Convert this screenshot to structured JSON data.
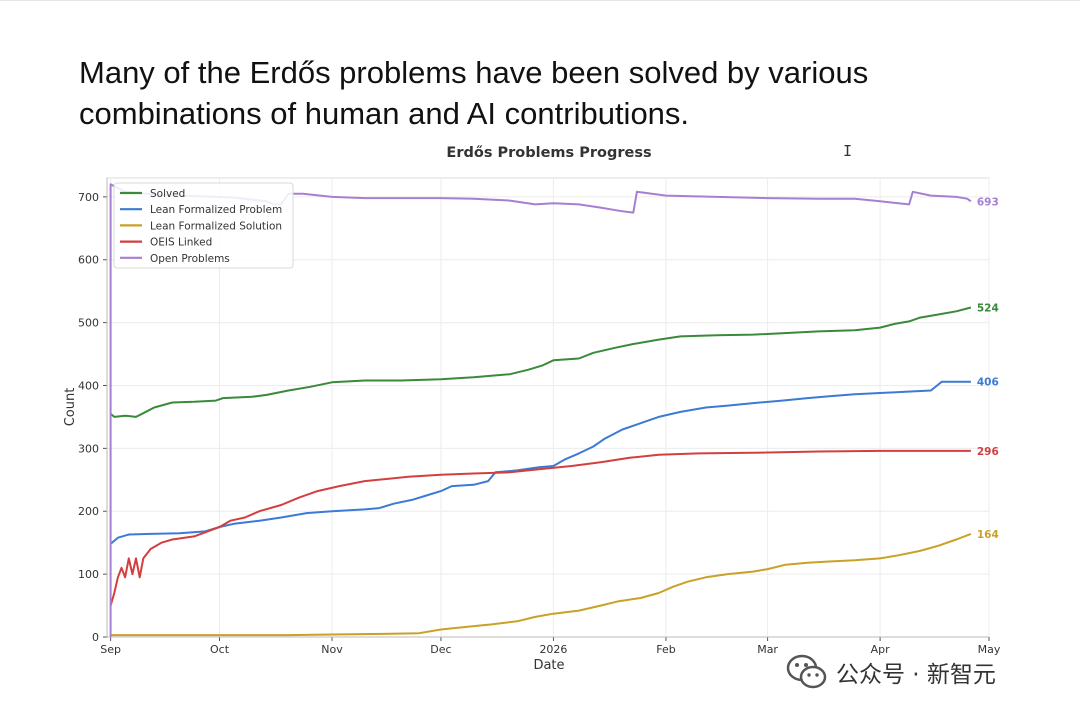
{
  "headline": {
    "line1": "Many of the Erdős problems have been solved by various",
    "line2": "combinations of human and AI contributions."
  },
  "watermark": {
    "text": "公众号 · 新智元",
    "icon": "wechat-icon"
  },
  "cursor": {
    "glyph": "I",
    "icon": "text-cursor-icon"
  },
  "chart_data": {
    "type": "line",
    "title": "Erdős Problems Progress",
    "xlabel": "Date",
    "ylabel": "Count",
    "xlim": [
      "2025-08-31",
      "2026-05-01"
    ],
    "ylim": [
      0,
      730
    ],
    "x_ticks": [
      {
        "date": "2025-09-01",
        "label": "Sep"
      },
      {
        "date": "2025-10-01",
        "label": "Oct"
      },
      {
        "date": "2025-11-01",
        "label": "Nov"
      },
      {
        "date": "2025-12-01",
        "label": "Dec"
      },
      {
        "date": "2026-01-01",
        "label": "2026"
      },
      {
        "date": "2026-02-01",
        "label": "Feb"
      },
      {
        "date": "2026-03-01",
        "label": "Mar"
      },
      {
        "date": "2026-04-01",
        "label": "Apr"
      },
      {
        "date": "2026-05-01",
        "label": "May"
      }
    ],
    "y_ticks": [
      0,
      100,
      200,
      300,
      400,
      500,
      600,
      700
    ],
    "grid": true,
    "legend_position": "top-left",
    "series": [
      {
        "name": "Solved",
        "color": "#3a8a3a",
        "end_label": "524",
        "points": [
          [
            "2025-09-01",
            355
          ],
          [
            "2025-09-02",
            350
          ],
          [
            "2025-09-05",
            352
          ],
          [
            "2025-09-08",
            350
          ],
          [
            "2025-09-10",
            356
          ],
          [
            "2025-09-13",
            365
          ],
          [
            "2025-09-18",
            373
          ],
          [
            "2025-09-24",
            374
          ],
          [
            "2025-09-30",
            376
          ],
          [
            "2025-10-02",
            380
          ],
          [
            "2025-10-10",
            382
          ],
          [
            "2025-10-14",
            385
          ],
          [
            "2025-10-20",
            392
          ],
          [
            "2025-10-26",
            398
          ],
          [
            "2025-11-01",
            405
          ],
          [
            "2025-11-10",
            408
          ],
          [
            "2025-11-20",
            408
          ],
          [
            "2025-12-01",
            410
          ],
          [
            "2025-12-10",
            413
          ],
          [
            "2025-12-20",
            418
          ],
          [
            "2025-12-25",
            425
          ],
          [
            "2025-12-29",
            432
          ],
          [
            "2026-01-01",
            440
          ],
          [
            "2026-01-08",
            443
          ],
          [
            "2026-01-12",
            452
          ],
          [
            "2026-01-18",
            460
          ],
          [
            "2026-01-23",
            466
          ],
          [
            "2026-01-30",
            473
          ],
          [
            "2026-02-05",
            478
          ],
          [
            "2026-02-15",
            480
          ],
          [
            "2026-02-25",
            481
          ],
          [
            "2026-03-05",
            483
          ],
          [
            "2026-03-15",
            486
          ],
          [
            "2026-03-25",
            488
          ],
          [
            "2026-04-01",
            492
          ],
          [
            "2026-04-05",
            498
          ],
          [
            "2026-04-09",
            502
          ],
          [
            "2026-04-12",
            508
          ],
          [
            "2026-04-16",
            512
          ],
          [
            "2026-04-22",
            518
          ],
          [
            "2026-04-26",
            524
          ]
        ]
      },
      {
        "name": "Lean Formalized Problem",
        "color": "#3c7ad6",
        "end_label": "406",
        "points": [
          [
            "2025-09-01",
            148
          ],
          [
            "2025-09-03",
            158
          ],
          [
            "2025-09-06",
            163
          ],
          [
            "2025-09-12",
            164
          ],
          [
            "2025-09-20",
            165
          ],
          [
            "2025-09-27",
            168
          ],
          [
            "2025-10-01",
            175
          ],
          [
            "2025-10-05",
            180
          ],
          [
            "2025-10-12",
            185
          ],
          [
            "2025-10-18",
            190
          ],
          [
            "2025-10-25",
            197
          ],
          [
            "2025-11-01",
            200
          ],
          [
            "2025-11-10",
            203
          ],
          [
            "2025-11-14",
            205
          ],
          [
            "2025-11-18",
            212
          ],
          [
            "2025-11-23",
            218
          ],
          [
            "2025-11-27",
            225
          ],
          [
            "2025-12-01",
            232
          ],
          [
            "2025-12-04",
            240
          ],
          [
            "2025-12-10",
            242
          ],
          [
            "2025-12-14",
            248
          ],
          [
            "2025-12-16",
            262
          ],
          [
            "2025-12-22",
            265
          ],
          [
            "2025-12-28",
            270
          ],
          [
            "2026-01-01",
            272
          ],
          [
            "2026-01-04",
            282
          ],
          [
            "2026-01-08",
            292
          ],
          [
            "2026-01-12",
            303
          ],
          [
            "2026-01-15",
            315
          ],
          [
            "2026-01-20",
            330
          ],
          [
            "2026-01-25",
            340
          ],
          [
            "2026-01-30",
            350
          ],
          [
            "2026-02-05",
            358
          ],
          [
            "2026-02-12",
            365
          ],
          [
            "2026-02-18",
            368
          ],
          [
            "2026-02-25",
            372
          ],
          [
            "2026-03-05",
            376
          ],
          [
            "2026-03-12",
            380
          ],
          [
            "2026-03-18",
            383
          ],
          [
            "2026-03-25",
            386
          ],
          [
            "2026-04-01",
            388
          ],
          [
            "2026-04-08",
            390
          ],
          [
            "2026-04-15",
            392
          ],
          [
            "2026-04-18",
            406
          ],
          [
            "2026-04-26",
            406
          ]
        ]
      },
      {
        "name": "Lean Formalized Solution",
        "color": "#c9a127",
        "end_label": "164",
        "points": [
          [
            "2025-09-01",
            3
          ],
          [
            "2025-09-15",
            3
          ],
          [
            "2025-10-01",
            3
          ],
          [
            "2025-10-20",
            3
          ],
          [
            "2025-11-01",
            4
          ],
          [
            "2025-11-15",
            5
          ],
          [
            "2025-11-25",
            6
          ],
          [
            "2025-12-01",
            12
          ],
          [
            "2025-12-08",
            16
          ],
          [
            "2025-12-15",
            20
          ],
          [
            "2025-12-22",
            25
          ],
          [
            "2025-12-27",
            32
          ],
          [
            "2026-01-01",
            37
          ],
          [
            "2026-01-08",
            42
          ],
          [
            "2026-01-14",
            50
          ],
          [
            "2026-01-19",
            57
          ],
          [
            "2026-01-25",
            62
          ],
          [
            "2026-01-30",
            70
          ],
          [
            "2026-02-03",
            80
          ],
          [
            "2026-02-07",
            88
          ],
          [
            "2026-02-12",
            95
          ],
          [
            "2026-02-18",
            100
          ],
          [
            "2026-02-25",
            104
          ],
          [
            "2026-03-01",
            108
          ],
          [
            "2026-03-06",
            115
          ],
          [
            "2026-03-12",
            118
          ],
          [
            "2026-03-18",
            120
          ],
          [
            "2026-03-25",
            122
          ],
          [
            "2026-04-01",
            125
          ],
          [
            "2026-04-06",
            130
          ],
          [
            "2026-04-12",
            137
          ],
          [
            "2026-04-17",
            145
          ],
          [
            "2026-04-22",
            155
          ],
          [
            "2026-04-26",
            164
          ]
        ]
      },
      {
        "name": "OEIS Linked",
        "color": "#d33f3f",
        "end_label": "296",
        "points": [
          [
            "2025-09-01",
            50
          ],
          [
            "2025-09-02",
            70
          ],
          [
            "2025-09-03",
            95
          ],
          [
            "2025-09-04",
            110
          ],
          [
            "2025-09-05",
            95
          ],
          [
            "2025-09-06",
            125
          ],
          [
            "2025-09-07",
            100
          ],
          [
            "2025-09-08",
            125
          ],
          [
            "2025-09-09",
            95
          ],
          [
            "2025-09-10",
            125
          ],
          [
            "2025-09-12",
            140
          ],
          [
            "2025-09-15",
            150
          ],
          [
            "2025-09-18",
            155
          ],
          [
            "2025-09-24",
            160
          ],
          [
            "2025-10-01",
            175
          ],
          [
            "2025-10-04",
            185
          ],
          [
            "2025-10-08",
            190
          ],
          [
            "2025-10-12",
            200
          ],
          [
            "2025-10-18",
            210
          ],
          [
            "2025-10-23",
            222
          ],
          [
            "2025-10-28",
            232
          ],
          [
            "2025-11-03",
            240
          ],
          [
            "2025-11-10",
            248
          ],
          [
            "2025-11-17",
            252
          ],
          [
            "2025-11-22",
            255
          ],
          [
            "2025-12-01",
            258
          ],
          [
            "2025-12-10",
            260
          ],
          [
            "2025-12-20",
            262
          ],
          [
            "2025-12-30",
            268
          ],
          [
            "2026-01-06",
            272
          ],
          [
            "2026-01-14",
            278
          ],
          [
            "2026-01-22",
            285
          ],
          [
            "2026-01-30",
            290
          ],
          [
            "2026-02-10",
            292
          ],
          [
            "2026-02-25",
            293
          ],
          [
            "2026-03-15",
            295
          ],
          [
            "2026-04-01",
            296
          ],
          [
            "2026-04-26",
            296
          ]
        ]
      },
      {
        "name": "Open Problems",
        "color": "#a77fd1",
        "end_label": "693",
        "points": [
          [
            "2025-09-01",
            0
          ],
          [
            "2025-09-01",
            720
          ],
          [
            "2025-09-05",
            708
          ],
          [
            "2025-09-15",
            703
          ],
          [
            "2025-09-25",
            701
          ],
          [
            "2025-10-05",
            699
          ],
          [
            "2025-10-14",
            693
          ],
          [
            "2025-10-16",
            688
          ],
          [
            "2025-10-18",
            688
          ],
          [
            "2025-10-20",
            705
          ],
          [
            "2025-10-24",
            705
          ],
          [
            "2025-11-01",
            700
          ],
          [
            "2025-11-10",
            698
          ],
          [
            "2025-11-20",
            698
          ],
          [
            "2025-12-01",
            698
          ],
          [
            "2025-12-10",
            697
          ],
          [
            "2025-12-20",
            694
          ],
          [
            "2025-12-27",
            688
          ],
          [
            "2026-01-01",
            690
          ],
          [
            "2026-01-08",
            688
          ],
          [
            "2026-01-14",
            683
          ],
          [
            "2026-01-20",
            677
          ],
          [
            "2026-01-23",
            675
          ],
          [
            "2026-01-24",
            708
          ],
          [
            "2026-02-01",
            702
          ],
          [
            "2026-02-15",
            700
          ],
          [
            "2026-03-01",
            698
          ],
          [
            "2026-03-15",
            697
          ],
          [
            "2026-03-25",
            697
          ],
          [
            "2026-04-01",
            693
          ],
          [
            "2026-04-06",
            690
          ],
          [
            "2026-04-09",
            688
          ],
          [
            "2026-04-10",
            708
          ],
          [
            "2026-04-15",
            702
          ],
          [
            "2026-04-22",
            700
          ],
          [
            "2026-04-25",
            697
          ],
          [
            "2026-04-26",
            693
          ]
        ]
      }
    ]
  }
}
